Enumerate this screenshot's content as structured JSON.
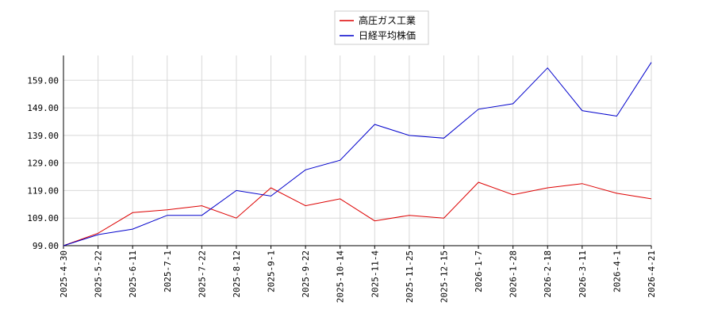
{
  "chart_data": {
    "type": "line",
    "title": "",
    "xlabel": "",
    "ylabel": "",
    "ylim": [
      99,
      168
    ],
    "yticks": [
      "99.00",
      "109.00",
      "119.00",
      "129.00",
      "139.00",
      "149.00",
      "159.00"
    ],
    "x": [
      "2025-4-30",
      "2025-5-22",
      "2025-6-11",
      "2025-7-1",
      "2025-7-22",
      "2025-8-12",
      "2025-9-1",
      "2025-9-22",
      "2025-10-14",
      "2025-11-4",
      "2025-11-25",
      "2025-12-15",
      "2026-1-7",
      "2026-1-28",
      "2026-2-18",
      "2026-3-11",
      "2026-4-1",
      "2026-4-21"
    ],
    "grid": true,
    "legend_position": "top-center",
    "series": [
      {
        "name": "高圧ガス工業",
        "color": "#dd0000",
        "values": [
          99.0,
          103.5,
          111.0,
          112.0,
          113.5,
          109.0,
          120.0,
          113.5,
          116.0,
          108.0,
          110.0,
          109.0,
          122.0,
          117.5,
          120.0,
          121.5,
          118.0,
          116.0
        ]
      },
      {
        "name": "日経平均株価",
        "color": "#0000cc",
        "values": [
          99.0,
          103.0,
          105.0,
          110.0,
          110.0,
          119.0,
          117.0,
          126.5,
          130.0,
          143.0,
          139.0,
          138.0,
          148.5,
          150.5,
          163.5,
          148.0,
          146.0,
          165.5
        ]
      }
    ]
  }
}
